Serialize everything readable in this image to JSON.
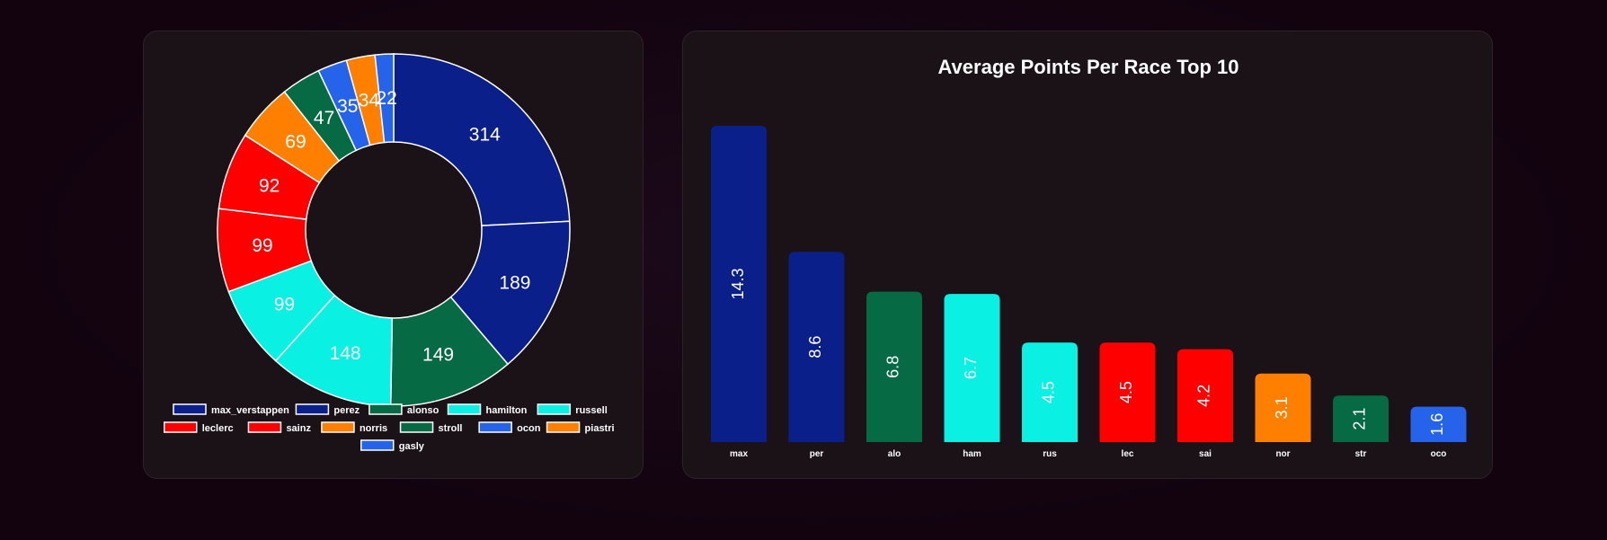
{
  "chart_data": [
    {
      "type": "pie",
      "variant": "doughnut",
      "categories": [
        "max_verstappen",
        "perez",
        "alonso",
        "hamilton",
        "russell",
        "leclerc",
        "sainz",
        "norris",
        "stroll",
        "ocon",
        "piastri",
        "gasly"
      ],
      "values": [
        314,
        189,
        149,
        148,
        99,
        99,
        92,
        69,
        47,
        35,
        34,
        22
      ],
      "labels": [
        "314",
        "189",
        "149",
        "148",
        "99",
        "99",
        "92",
        "69",
        "47",
        "35",
        "34",
        "22"
      ],
      "colors": [
        "#0b1f8a",
        "#0b1f8a",
        "#066b44",
        "#0af0e3",
        "#0af0e3",
        "#ff0000",
        "#ff0000",
        "#ff7f00",
        "#066b44",
        "#2563eb",
        "#ff7f00",
        "#2563eb"
      ],
      "legend_position": "bottom"
    },
    {
      "type": "bar",
      "title": "Average Points Per Race Top 10",
      "categories": [
        "max",
        "per",
        "alo",
        "ham",
        "rus",
        "lec",
        "sai",
        "nor",
        "str",
        "oco"
      ],
      "values": [
        14.3,
        8.6,
        6.8,
        6.7,
        4.5,
        4.5,
        4.2,
        3.1,
        2.1,
        1.6
      ],
      "labels": [
        "14.3",
        "8.6",
        "6.8",
        "6.7",
        "4.5",
        "4.5",
        "4.2",
        "3.1",
        "2.1",
        "1.6"
      ],
      "colors": [
        "#0b1f8a",
        "#0b1f8a",
        "#066b44",
        "#0af0e3",
        "#0af0e3",
        "#ff0000",
        "#ff0000",
        "#ff7f00",
        "#066b44",
        "#2563eb"
      ],
      "ylim": [
        0,
        14.3
      ],
      "grid": false,
      "legend": false
    }
  ]
}
